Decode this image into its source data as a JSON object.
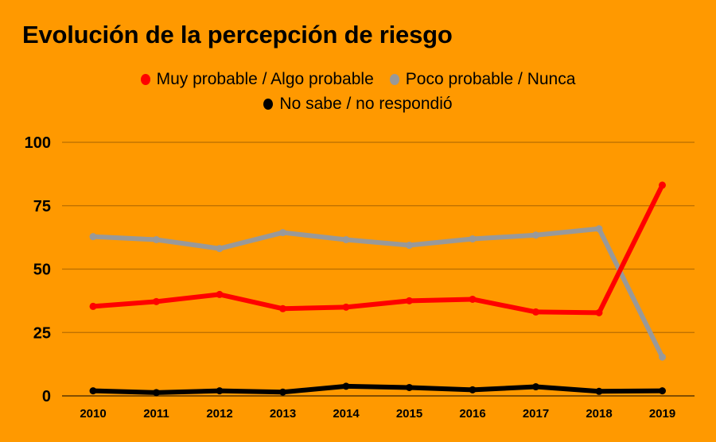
{
  "chart_data": {
    "type": "line",
    "title": "Evolución de la percepción de riesgo",
    "xlabel": "",
    "ylabel": "",
    "x": [
      "2010",
      "2011",
      "2012",
      "2013",
      "2014",
      "2015",
      "2016",
      "2017",
      "2018",
      "2019"
    ],
    "ylim": [
      0,
      100
    ],
    "yticks": [
      "0",
      "25",
      "50",
      "75",
      "100"
    ],
    "grid": true,
    "legend_position": "top-center",
    "series": [
      {
        "name": "Muy probable / Algo probable",
        "color": "#FF0000",
        "values": [
          35.3,
          37.2,
          40.0,
          34.4,
          35.0,
          37.5,
          38.1,
          33.1,
          32.8,
          83.1
        ]
      },
      {
        "name": "Poco probable / Nunca",
        "color": "#999999",
        "values": [
          62.8,
          61.6,
          58.1,
          64.4,
          61.6,
          59.4,
          61.9,
          63.4,
          65.9,
          15.3
        ]
      },
      {
        "name": "No sabe / no respondió",
        "color": "#000000",
        "values": [
          2.0,
          1.3,
          2.0,
          1.5,
          3.8,
          3.3,
          2.4,
          3.6,
          1.8,
          2.0
        ]
      }
    ]
  },
  "colors": {
    "background": "#FF9900",
    "gridline": "#B86E00",
    "axis": "#5A3600"
  }
}
